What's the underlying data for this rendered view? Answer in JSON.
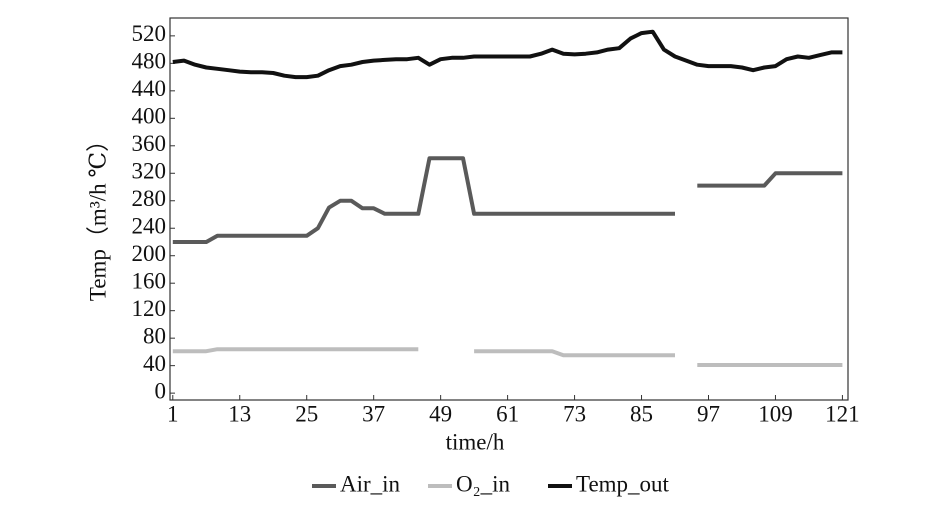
{
  "chart_data": {
    "type": "line",
    "x_label": "time/h",
    "y_label": "Temp（m³/h ℃）",
    "x": [
      1,
      3,
      5,
      7,
      9,
      11,
      13,
      15,
      17,
      19,
      21,
      23,
      25,
      27,
      29,
      31,
      33,
      35,
      37,
      39,
      41,
      43,
      45,
      47,
      49,
      51,
      53,
      55,
      57,
      59,
      61,
      63,
      65,
      67,
      69,
      71,
      73,
      75,
      77,
      79,
      81,
      83,
      85,
      87,
      89,
      91,
      93,
      95,
      97,
      99,
      101,
      103,
      105,
      107,
      109,
      111,
      113,
      115,
      117,
      119,
      121
    ],
    "series": [
      {
        "name": "Air_in",
        "color": "#5a5a5a",
        "values": [
          220,
          220,
          220,
          220,
          229,
          229,
          229,
          229,
          229,
          229,
          229,
          229,
          229,
          240,
          270,
          280,
          280,
          269,
          269,
          261,
          261,
          261,
          261,
          342,
          342,
          342,
          342,
          261,
          261,
          261,
          261,
          261,
          261,
          261,
          261,
          261,
          261,
          261,
          261,
          261,
          261,
          261,
          261,
          261,
          261,
          261,
          null,
          302,
          302,
          302,
          302,
          302,
          302,
          302,
          320,
          320,
          320,
          320,
          320,
          320,
          320
        ]
      },
      {
        "name": "O₂_in",
        "color": "#bdbdbd",
        "values": [
          61,
          61,
          61,
          61,
          64,
          64,
          64,
          64,
          64,
          64,
          64,
          64,
          64,
          64,
          64,
          64,
          64,
          64,
          64,
          64,
          64,
          64,
          64,
          null,
          null,
          null,
          null,
          61,
          61,
          61,
          61,
          61,
          61,
          61,
          61,
          55,
          55,
          55,
          55,
          55,
          55,
          55,
          55,
          55,
          55,
          55,
          null,
          41,
          41,
          41,
          41,
          41,
          41,
          41,
          41,
          41,
          41,
          41,
          41,
          41,
          41
        ]
      },
      {
        "name": "Temp_out",
        "color": "#111111",
        "values": [
          482,
          484,
          478,
          474,
          472,
          470,
          468,
          467,
          467,
          466,
          462,
          460,
          460,
          462,
          470,
          476,
          478,
          482,
          484,
          485,
          486,
          486,
          488,
          478,
          486,
          488,
          488,
          490,
          490,
          490,
          490,
          490,
          490,
          494,
          500,
          494,
          493,
          494,
          496,
          500,
          502,
          516,
          524,
          526,
          500,
          490,
          484,
          478,
          476,
          476,
          476,
          474,
          470,
          474,
          476,
          486,
          490,
          488,
          492,
          496,
          496
        ]
      }
    ],
    "xlim": [
      0.5,
      122
    ],
    "xticks": [
      1,
      13,
      25,
      37,
      49,
      61,
      73,
      85,
      97,
      109,
      121
    ],
    "ylim": [
      -10,
      546
    ],
    "yticks": [
      0,
      40,
      80,
      120,
      160,
      200,
      240,
      280,
      320,
      360,
      400,
      440,
      480,
      520
    ]
  }
}
